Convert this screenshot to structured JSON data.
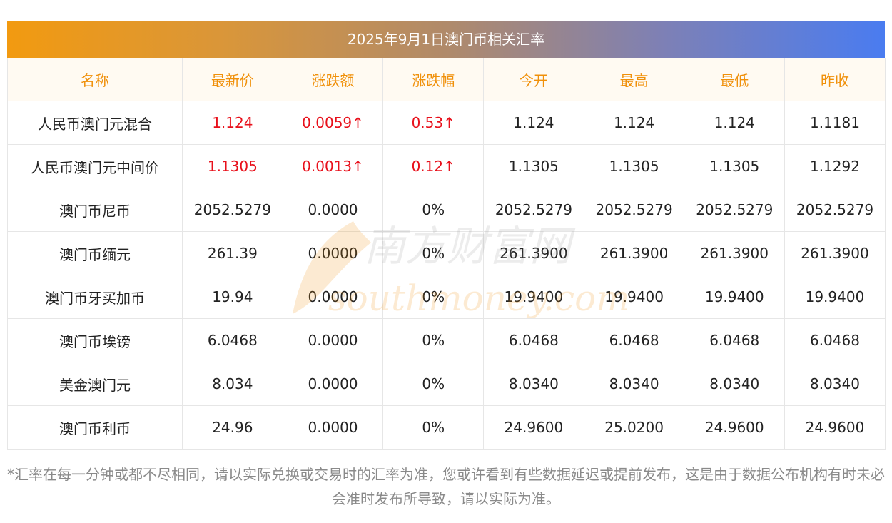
{
  "title": "2025年9月1日澳门币相关汇率",
  "headers": [
    "名称",
    "最新价",
    "涨跌额",
    "涨跌幅",
    "今开",
    "最高",
    "最低",
    "昨收"
  ],
  "rows": [
    {
      "name": "人民币澳门元混合",
      "latest": "1.124",
      "change": "0.0059↑",
      "pct": "0.53↑",
      "open": "1.124",
      "high": "1.124",
      "low": "1.124",
      "prev": "1.1181",
      "up": true
    },
    {
      "name": "人民币澳门元中间价",
      "latest": "1.1305",
      "change": "0.0013↑",
      "pct": "0.12↑",
      "open": "1.1305",
      "high": "1.1305",
      "low": "1.1305",
      "prev": "1.1292",
      "up": true
    },
    {
      "name": "澳门币尼币",
      "latest": "2052.5279",
      "change": "0.0000",
      "pct": "0%",
      "open": "2052.5279",
      "high": "2052.5279",
      "low": "2052.5279",
      "prev": "2052.5279",
      "up": false
    },
    {
      "name": "澳门币缅元",
      "latest": "261.39",
      "change": "0.0000",
      "pct": "0%",
      "open": "261.3900",
      "high": "261.3900",
      "low": "261.3900",
      "prev": "261.3900",
      "up": false
    },
    {
      "name": "澳门币牙买加币",
      "latest": "19.94",
      "change": "0.0000",
      "pct": "0%",
      "open": "19.9400",
      "high": "19.9400",
      "low": "19.9400",
      "prev": "19.9400",
      "up": false
    },
    {
      "name": "澳门币埃镑",
      "latest": "6.0468",
      "change": "0.0000",
      "pct": "0%",
      "open": "6.0468",
      "high": "6.0468",
      "low": "6.0468",
      "prev": "6.0468",
      "up": false
    },
    {
      "name": "美金澳门元",
      "latest": "8.034",
      "change": "0.0000",
      "pct": "0%",
      "open": "8.0340",
      "high": "8.0340",
      "low": "8.0340",
      "prev": "8.0340",
      "up": false
    },
    {
      "name": "澳门币利币",
      "latest": "24.96",
      "change": "0.0000",
      "pct": "0%",
      "open": "24.9600",
      "high": "25.0200",
      "low": "24.9600",
      "prev": "24.9600",
      "up": false
    }
  ],
  "watermark": {
    "cn": "南方财富网",
    "en": "southmoney.com"
  },
  "note": "*汇率在每一分钟或都不尽相同，请以实际兑换或交易时的汇率为准，您或许看到有些数据延迟或提前发布，这是由于数据公布机构有时未必会准时发布所导致，请以实际为准。",
  "colors": {
    "header_text": "#f0900a",
    "up": "#e8101b",
    "gradient_start": "#f29a10",
    "gradient_end": "#4a7cf0"
  }
}
